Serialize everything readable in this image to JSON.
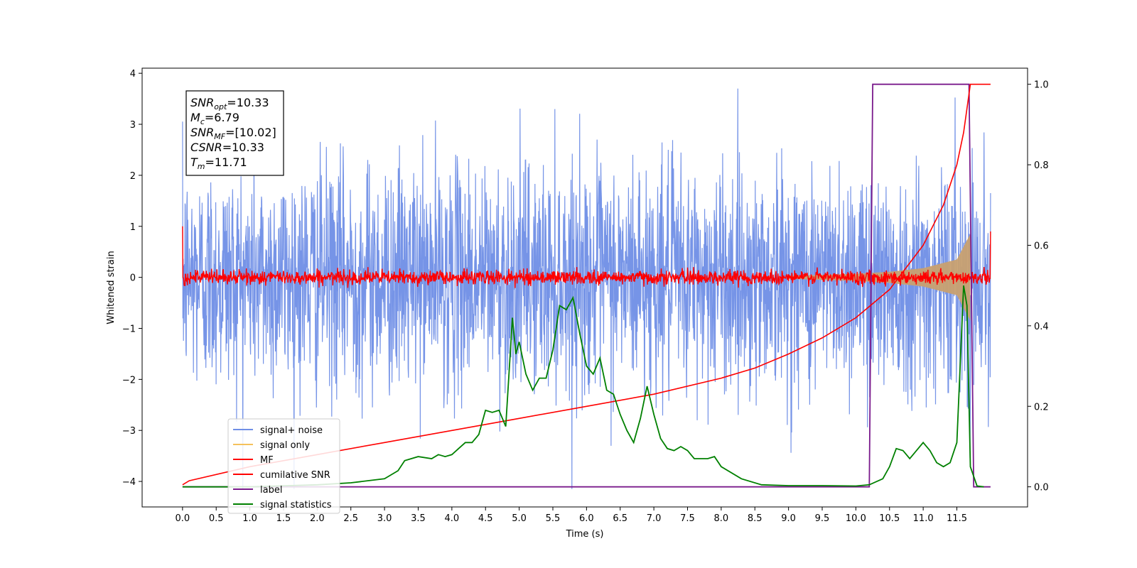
{
  "chart_data": {
    "type": "line",
    "title": "",
    "xlabel": "Time (s)",
    "ylabel": "Whitened strain",
    "ylabel_right": "",
    "xlim": [
      -0.6,
      12.55
    ],
    "ylim": [
      -4.5,
      4.1
    ],
    "ylim_right": [
      -0.05,
      1.04
    ],
    "x_ticks": [
      "0.0",
      "0.5",
      "1.0",
      "1.5",
      "2.0",
      "2.5",
      "3.0",
      "3.5",
      "4.0",
      "4.5",
      "5.0",
      "5.5",
      "6.0",
      "6.5",
      "7.0",
      "7.5",
      "8.0",
      "8.5",
      "9.0",
      "9.5",
      "10.0",
      "10.5",
      "11.0",
      "11.5"
    ],
    "y_ticks": [
      "4",
      "3",
      "2",
      "1",
      "0",
      "−1",
      "−2",
      "−3",
      "−4"
    ],
    "y_ticks_right": [
      "1.0",
      "0.8",
      "0.6",
      "0.4",
      "0.2",
      "0.0"
    ],
    "grid": false,
    "legend_placement": "lower-left",
    "stats_box": [
      {
        "base": "SNR",
        "sub": "opt",
        "value": "=10.33"
      },
      {
        "base": "M",
        "sub": "c",
        "value": "=6.79"
      },
      {
        "base": "SNR",
        "sub": "MF",
        "value": "=[10.02]"
      },
      {
        "base": "CSNR",
        "sub": "",
        "value": "=10.33"
      },
      {
        "base": "T",
        "sub": "m",
        "value": "=11.71"
      }
    ],
    "series": [
      {
        "name": "signal+ noise",
        "axis": "left",
        "color": "#6f8ee6",
        "description_values": {
          "range": [
            -4.15,
            3.7
          ],
          "typical_abs": 1.5
        }
      },
      {
        "name": "signal only",
        "axis": "left",
        "color": "#f5c15c",
        "chirp_envelope": {
          "t": [
            9.0,
            10.0,
            10.5,
            11.0,
            11.5,
            11.7
          ],
          "amp": [
            0.03,
            0.07,
            0.11,
            0.18,
            0.35,
            0.85
          ]
        }
      },
      {
        "name": "MF",
        "axis": "left",
        "color": "#ff0000",
        "description_values": {
          "center": 0.0,
          "typical_abs": 0.1
        }
      },
      {
        "name": "cumilative SNR",
        "axis": "right",
        "color": "#ff0000",
        "x": [
          0.0,
          0.1,
          1.0,
          2.0,
          3.0,
          4.0,
          5.0,
          6.0,
          7.0,
          8.0,
          8.5,
          9.0,
          9.5,
          10.0,
          10.5,
          11.0,
          11.3,
          11.5,
          11.6,
          11.7,
          12.0
        ],
        "values": [
          0.005,
          0.015,
          0.05,
          0.08,
          0.11,
          0.14,
          0.17,
          0.2,
          0.23,
          0.27,
          0.295,
          0.33,
          0.37,
          0.42,
          0.49,
          0.6,
          0.7,
          0.8,
          0.88,
          1.0,
          1.0
        ]
      },
      {
        "name": "label",
        "axis": "right",
        "color": "#7a1a8c",
        "x": [
          0.0,
          10.2,
          10.25,
          11.68,
          11.75,
          12.0
        ],
        "values": [
          0.0,
          0.0,
          1.0,
          1.0,
          0.0,
          0.0
        ]
      },
      {
        "name": "signal statistics",
        "axis": "right",
        "color": "#008000",
        "x": [
          0.0,
          1.0,
          2.0,
          2.5,
          3.0,
          3.2,
          3.3,
          3.5,
          3.7,
          3.8,
          3.9,
          4.0,
          4.1,
          4.2,
          4.3,
          4.4,
          4.5,
          4.6,
          4.7,
          4.8,
          4.9,
          4.95,
          5.0,
          5.1,
          5.2,
          5.3,
          5.4,
          5.5,
          5.6,
          5.7,
          5.8,
          5.9,
          6.0,
          6.1,
          6.2,
          6.3,
          6.4,
          6.5,
          6.6,
          6.7,
          6.8,
          6.9,
          7.0,
          7.1,
          7.2,
          7.3,
          7.4,
          7.5,
          7.6,
          7.7,
          7.8,
          7.9,
          8.0,
          8.3,
          8.6,
          9.0,
          9.5,
          10.0,
          10.2,
          10.4,
          10.5,
          10.6,
          10.7,
          10.8,
          10.9,
          11.0,
          11.1,
          11.2,
          11.3,
          11.4,
          11.5,
          11.6,
          11.65,
          11.7,
          11.8,
          11.9
        ],
        "values": [
          0.0,
          0.0,
          0.005,
          0.01,
          0.02,
          0.04,
          0.065,
          0.075,
          0.07,
          0.08,
          0.075,
          0.08,
          0.095,
          0.11,
          0.11,
          0.13,
          0.19,
          0.185,
          0.19,
          0.15,
          0.42,
          0.33,
          0.36,
          0.28,
          0.24,
          0.27,
          0.27,
          0.34,
          0.45,
          0.44,
          0.47,
          0.38,
          0.3,
          0.28,
          0.32,
          0.24,
          0.23,
          0.18,
          0.14,
          0.11,
          0.17,
          0.25,
          0.18,
          0.12,
          0.095,
          0.09,
          0.1,
          0.09,
          0.07,
          0.07,
          0.07,
          0.075,
          0.05,
          0.02,
          0.005,
          0.003,
          0.003,
          0.002,
          0.005,
          0.02,
          0.05,
          0.095,
          0.09,
          0.07,
          0.09,
          0.11,
          0.09,
          0.06,
          0.05,
          0.06,
          0.11,
          0.5,
          0.45,
          0.05,
          0.002,
          0.0
        ]
      }
    ]
  }
}
